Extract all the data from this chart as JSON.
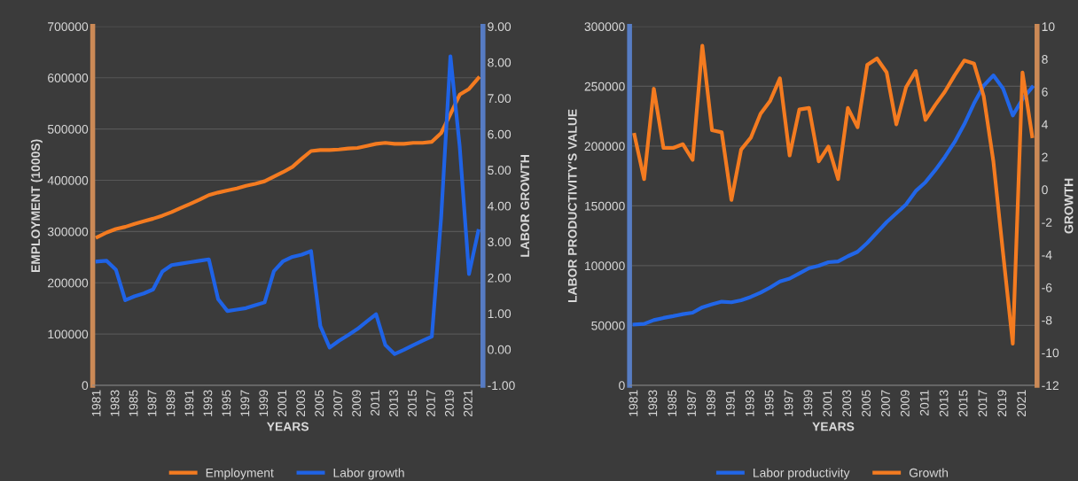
{
  "chart_data": [
    {
      "type": "line",
      "categories": [
        "1981",
        null,
        "1983",
        null,
        "1985",
        null,
        "1987",
        null,
        "1989",
        null,
        "1991",
        null,
        "1993",
        null,
        "1995",
        null,
        "1997",
        null,
        "1999",
        null,
        "2001",
        null,
        "2003",
        null,
        "2005",
        null,
        "2007",
        null,
        "2009",
        null,
        "2011",
        null,
        "2013",
        null,
        "2015",
        null,
        "2017",
        null,
        "2019",
        null,
        "2021",
        null
      ],
      "xlabel": "YEARS",
      "ylabel": "EMPLOYMENT (1000S)",
      "y2label": "LABOR GROWTH",
      "ylim": [
        0,
        700000
      ],
      "yticks": [
        0,
        100000,
        200000,
        300000,
        400000,
        500000,
        600000,
        700000
      ],
      "y2lim": [
        -1,
        9
      ],
      "y2ticks": [
        {
          "value": -1,
          "label": "-1.00"
        },
        {
          "value": 0,
          "label": "0.00"
        },
        {
          "value": 1,
          "label": "1.00"
        },
        {
          "value": 2,
          "label": "2.00"
        },
        {
          "value": 3,
          "label": "3.00"
        },
        {
          "value": 4,
          "label": "4.00"
        },
        {
          "value": 5,
          "label": "5.00"
        },
        {
          "value": 6,
          "label": "6.00"
        },
        {
          "value": 7,
          "label": "7.00"
        },
        {
          "value": 8,
          "label": "8.00"
        },
        {
          "value": 9,
          "label": "9.00"
        }
      ],
      "grid": "y",
      "legend": "bottom",
      "series": [
        {
          "name": "Employment",
          "color": "#f47b20",
          "values": [
            289000,
            298000,
            305000,
            309000,
            315000,
            320000,
            325000,
            331000,
            338000,
            346000,
            354000,
            362000,
            371000,
            376000,
            380000,
            384000,
            389000,
            393000,
            398000,
            407000,
            416000,
            426000,
            442000,
            457000,
            459000,
            459000,
            460000,
            462000,
            463000,
            467000,
            471000,
            473000,
            471000,
            471000,
            473000,
            473000,
            475000,
            492000,
            529000,
            567000,
            578000,
            599000
          ]
        },
        {
          "name": "Labor growth",
          "color": "#1f63e6",
          "axis": "y2",
          "values": [
            2.45,
            2.47,
            2.22,
            1.37,
            1.48,
            1.56,
            1.67,
            2.17,
            2.35,
            2.39,
            2.43,
            2.47,
            2.51,
            1.4,
            1.07,
            1.11,
            1.15,
            1.23,
            1.31,
            2.18,
            2.46,
            2.58,
            2.64,
            2.74,
            0.65,
            0.05,
            0.24,
            0.4,
            0.57,
            0.78,
            0.98,
            0.12,
            -0.13,
            -0.01,
            0.12,
            0.24,
            0.36,
            3.67,
            8.17,
            5.65,
            2.1,
            3.3
          ]
        }
      ]
    },
    {
      "type": "line",
      "categories": [
        "1981",
        null,
        "1983",
        null,
        "1985",
        null,
        "1987",
        null,
        "1989",
        null,
        "1991",
        null,
        "1993",
        null,
        "1995",
        null,
        "1997",
        null,
        "1999",
        null,
        "2001",
        null,
        "2003",
        null,
        "2005",
        null,
        "2007",
        null,
        "2009",
        null,
        "2011",
        null,
        "2013",
        null,
        "2015",
        null,
        "2017",
        null,
        "2019",
        null,
        "2021",
        null
      ],
      "xlabel": "YEARS",
      "ylabel": "LABOR PRODUCTIVITY'S VALUE",
      "y2label": "GROWTH",
      "ylim": [
        0,
        300000
      ],
      "yticks": [
        0,
        50000,
        100000,
        150000,
        200000,
        250000,
        300000
      ],
      "y2lim": [
        -12,
        10
      ],
      "y2ticks": [
        -12,
        -10,
        -8,
        -6,
        -4,
        -2,
        0,
        2,
        4,
        6,
        8,
        10
      ],
      "grid": "y",
      "legend": "bottom",
      "series": [
        {
          "name": "Labor productivity",
          "color": "#2166e8",
          "values": [
            50800,
            51300,
            54500,
            56300,
            57800,
            59500,
            60700,
            65200,
            67700,
            69900,
            69400,
            71100,
            73900,
            77400,
            81800,
            86800,
            89200,
            93500,
            97900,
            99900,
            102900,
            103600,
            107900,
            111600,
            119000,
            127700,
            136400,
            143800,
            151200,
            162400,
            169800,
            179800,
            190900,
            203300,
            218200,
            235600,
            250500,
            259100,
            248000,
            225600,
            239300,
            249200
          ]
        },
        {
          "name": "Growth",
          "color": "#f47b20",
          "axis": "y2",
          "values": [
            3.36,
            0.64,
            6.18,
            2.55,
            2.55,
            2.78,
            1.82,
            8.82,
            3.64,
            3.51,
            -0.64,
            2.45,
            3.18,
            4.64,
            5.45,
            6.82,
            2.09,
            4.91,
            5.0,
            1.73,
            2.64,
            0.64,
            5.0,
            3.82,
            7.64,
            8.04,
            7.18,
            4.0,
            6.27,
            7.27,
            4.27,
            5.18,
            6.0,
            7.0,
            7.91,
            7.73,
            5.73,
            1.73,
            -3.91,
            -9.45,
            7.18,
            3.27
          ]
        }
      ]
    }
  ]
}
